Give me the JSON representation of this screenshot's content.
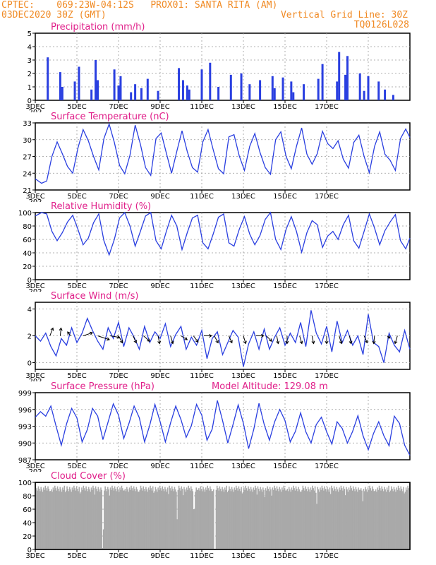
{
  "header": {
    "line1": "CPTEC:    069:23W-04:12S   PROX01: SANTA RITA (AM)",
    "line2_left": "03DEC2020 30Z (GMT)",
    "line2_right": "Vertical Grid Line: 30Z",
    "line3_right": "TQ0126L028"
  },
  "colors": {
    "header": "#f08a24",
    "title": "#e0208a",
    "series": "#2a3fe0",
    "cloud": "#a9a9a9"
  },
  "x_axis": {
    "ticks": [
      "3DEC",
      "5DEC",
      "7DEC",
      "9DEC",
      "11DEC",
      "13DEC",
      "15DEC",
      "17DEC"
    ],
    "year_fragment": "202"
  },
  "chart_data": [
    {
      "type": "bar",
      "title": "Precipitation (mm/h)",
      "ylim": [
        0,
        5
      ],
      "yticks": [
        "0",
        "1",
        "2",
        "3",
        "4",
        "5"
      ],
      "grid": true,
      "x_days": [
        0.6,
        1.2,
        1.3,
        1.9,
        2.1,
        2.7,
        2.9,
        3.0,
        3.8,
        4.0,
        4.1,
        4.6,
        4.8,
        5.1,
        5.4,
        5.9,
        6.9,
        7.1,
        7.3,
        7.4,
        8.0,
        8.4,
        8.8,
        9.4,
        9.9,
        10.3,
        10.8,
        11.4,
        11.5,
        11.9,
        12.3,
        12.4,
        12.9,
        13.6,
        13.8,
        14.5,
        14.6,
        14.9,
        15.0,
        15.6,
        15.8,
        16.0,
        16.5,
        16.8,
        17.2
      ],
      "values": [
        3.2,
        2.1,
        1.0,
        1.4,
        2.5,
        0.8,
        3.0,
        1.5,
        2.3,
        1.1,
        1.8,
        0.6,
        1.2,
        0.9,
        1.6,
        0.7,
        2.4,
        1.5,
        1.1,
        0.8,
        2.3,
        2.8,
        1.0,
        1.9,
        2.0,
        1.2,
        1.5,
        1.8,
        0.9,
        1.7,
        1.4,
        0.6,
        1.2,
        1.6,
        2.7,
        1.4,
        3.6,
        1.9,
        3.3,
        2.0,
        0.7,
        1.8,
        1.4,
        0.8,
        0.4
      ]
    },
    {
      "type": "line",
      "title": "Surface Temperature (nC)",
      "ylim": [
        21,
        33
      ],
      "yticks": [
        "21",
        "24",
        "27",
        "30",
        "33"
      ],
      "grid": true,
      "x_days": [
        0.0,
        0.3,
        0.55,
        0.8,
        1.05,
        1.3,
        1.55,
        1.8,
        2.05,
        2.3,
        2.55,
        2.8,
        3.05,
        3.3,
        3.55,
        3.8,
        4.05,
        4.3,
        4.55,
        4.8,
        5.05,
        5.3,
        5.55,
        5.8,
        6.05,
        6.3,
        6.55,
        6.8,
        7.05,
        7.3,
        7.55,
        7.8,
        8.05,
        8.3,
        8.55,
        8.8,
        9.05,
        9.3,
        9.55,
        9.8,
        10.05,
        10.3,
        10.55,
        10.8,
        11.05,
        11.3,
        11.55,
        11.8,
        12.05,
        12.3,
        12.55,
        12.8,
        13.05,
        13.3,
        13.55,
        13.8,
        14.05,
        14.3,
        14.55,
        14.8,
        15.05,
        15.3,
        15.55,
        15.8,
        16.05,
        16.3,
        16.55,
        16.8,
        17.05,
        17.3,
        17.55,
        17.8,
        18.0
      ],
      "values": [
        23.0,
        22.2,
        22.6,
        27.0,
        29.6,
        27.5,
        25.2,
        24.0,
        28.5,
        31.8,
        29.8,
        27.0,
        24.6,
        30.2,
        32.8,
        29.5,
        25.4,
        23.9,
        27.2,
        32.6,
        29.2,
        25.0,
        23.6,
        30.2,
        31.2,
        27.6,
        24.0,
        27.9,
        31.6,
        27.9,
        25.0,
        24.2,
        29.6,
        31.8,
        28.2,
        24.8,
        23.9,
        30.5,
        30.9,
        27.1,
        24.5,
        28.8,
        31.1,
        27.7,
        25.0,
        23.8,
        30.0,
        31.4,
        27.0,
        24.8,
        28.8,
        32.1,
        27.4,
        25.6,
        27.5,
        31.5,
        29.3,
        28.4,
        29.8,
        26.5,
        24.9,
        29.5,
        30.8,
        27.0,
        24.1,
        28.8,
        31.4,
        27.4,
        26.3,
        24.5,
        30.2,
        31.9,
        30.4
      ]
    },
    {
      "type": "line",
      "title": "Relative Humidity (%)",
      "ylim": [
        0,
        100
      ],
      "yticks": [
        "0",
        "20",
        "40",
        "60",
        "80",
        "100"
      ],
      "grid": true,
      "x_days": [
        0.0,
        0.3,
        0.55,
        0.8,
        1.05,
        1.3,
        1.55,
        1.8,
        2.05,
        2.3,
        2.55,
        2.8,
        3.05,
        3.3,
        3.55,
        3.8,
        4.05,
        4.3,
        4.55,
        4.8,
        5.05,
        5.3,
        5.55,
        5.8,
        6.05,
        6.3,
        6.55,
        6.8,
        7.05,
        7.3,
        7.55,
        7.8,
        8.05,
        8.3,
        8.55,
        8.8,
        9.05,
        9.3,
        9.55,
        9.8,
        10.05,
        10.3,
        10.55,
        10.8,
        11.05,
        11.3,
        11.55,
        11.8,
        12.05,
        12.3,
        12.55,
        12.8,
        13.05,
        13.3,
        13.55,
        13.8,
        14.05,
        14.3,
        14.55,
        14.8,
        15.05,
        15.3,
        15.55,
        15.8,
        16.05,
        16.3,
        16.55,
        16.8,
        17.05,
        17.3,
        17.55,
        17.8,
        18.0
      ],
      "values": [
        95.0,
        100.0,
        98.0,
        72.0,
        58.0,
        70.0,
        86.0,
        96.0,
        75.0,
        52.0,
        62.0,
        85.0,
        98.0,
        58.0,
        37.0,
        60.0,
        92.0,
        100.0,
        80.0,
        50.0,
        72.0,
        95.0,
        100.0,
        58.0,
        46.0,
        72.0,
        96.0,
        80.0,
        45.0,
        70.0,
        92.0,
        96.0,
        55.0,
        46.0,
        68.0,
        93.0,
        98.0,
        55.0,
        50.0,
        75.0,
        94.0,
        68.0,
        52.0,
        66.0,
        90.0,
        100.0,
        60.0,
        45.0,
        75.0,
        94.0,
        72.0,
        41.0,
        70.0,
        88.0,
        82.0,
        48.0,
        65.0,
        72.0,
        60.0,
        82.0,
        96.0,
        58.0,
        47.0,
        72.0,
        98.0,
        77.0,
        52.0,
        73.0,
        86.0,
        97.0,
        58.0,
        46.0,
        62.0
      ]
    },
    {
      "type": "line",
      "title": "Surface Wind (m/s)",
      "ylim": [
        -0.5,
        4.5
      ],
      "yticks": [
        "0",
        "2",
        "4"
      ],
      "grid": true,
      "x_days": [
        0.0,
        0.25,
        0.5,
        0.75,
        1.0,
        1.25,
        1.5,
        1.75,
        2.0,
        2.25,
        2.5,
        2.75,
        3.0,
        3.25,
        3.5,
        3.75,
        4.0,
        4.25,
        4.5,
        4.75,
        5.0,
        5.25,
        5.5,
        5.75,
        6.0,
        6.25,
        6.5,
        6.75,
        7.0,
        7.25,
        7.5,
        7.75,
        8.0,
        8.25,
        8.5,
        8.75,
        9.0,
        9.25,
        9.5,
        9.75,
        10.0,
        10.25,
        10.5,
        10.75,
        11.0,
        11.25,
        11.5,
        11.75,
        12.0,
        12.25,
        12.5,
        12.75,
        13.0,
        13.25,
        13.5,
        13.75,
        14.0,
        14.25,
        14.5,
        14.75,
        15.0,
        15.25,
        15.5,
        15.75,
        16.0,
        16.25,
        16.5,
        16.75,
        17.0,
        17.25,
        17.5,
        17.75,
        18.0
      ],
      "values": [
        2.0,
        1.6,
        2.2,
        1.2,
        0.5,
        1.8,
        1.3,
        2.6,
        1.5,
        2.2,
        3.3,
        2.4,
        1.6,
        1.0,
        2.6,
        1.8,
        3.0,
        1.2,
        2.6,
        1.9,
        1.0,
        2.7,
        1.5,
        2.3,
        1.8,
        2.9,
        1.2,
        2.1,
        2.7,
        1.0,
        1.9,
        1.3,
        2.4,
        0.3,
        1.8,
        2.3,
        0.6,
        1.5,
        2.4,
        1.9,
        -0.3,
        1.4,
        2.3,
        1.0,
        2.5,
        1.0,
        1.9,
        2.6,
        1.3,
        2.2,
        1.5,
        3.0,
        1.2,
        3.9,
        2.2,
        1.4,
        2.7,
        0.8,
        3.1,
        1.5,
        2.4,
        1.3,
        2.0,
        0.6,
        3.6,
        1.5,
        1.2,
        0.0,
        2.2,
        1.3,
        0.8,
        2.4,
        1.0
      ],
      "wind_vectors": [
        {
          "x": 0.7,
          "dx": 0.4,
          "dy": -1
        },
        {
          "x": 1.2,
          "dx": 0.1,
          "dy": -1
        },
        {
          "x": 1.7,
          "dx": -0.4,
          "dy": -0.5
        },
        {
          "x": 2.3,
          "dx": 1.2,
          "dy": -0.4
        },
        {
          "x": 3.0,
          "dx": 1.5,
          "dy": 0.5
        },
        {
          "x": 3.6,
          "dx": 1.2,
          "dy": 0.2
        },
        {
          "x": 4.0,
          "dx": 0.5,
          "dy": 0.9
        },
        {
          "x": 4.7,
          "dx": 0.4,
          "dy": 0.9
        },
        {
          "x": 5.2,
          "dx": 0.8,
          "dy": 0.7
        },
        {
          "x": 5.9,
          "dx": 0.2,
          "dy": 1
        },
        {
          "x": 6.5,
          "dx": 0.3,
          "dy": 1
        },
        {
          "x": 7.0,
          "dx": 0.8,
          "dy": 0.5
        },
        {
          "x": 7.6,
          "dx": 0.6,
          "dy": 0.8
        },
        {
          "x": 8.1,
          "dx": 1,
          "dy": 0
        },
        {
          "x": 8.6,
          "dx": 0.5,
          "dy": 0.9
        },
        {
          "x": 9.3,
          "dx": 0.4,
          "dy": 0.9
        },
        {
          "x": 10.0,
          "dx": 0.3,
          "dy": 1
        },
        {
          "x": 10.6,
          "dx": 1,
          "dy": 0
        },
        {
          "x": 11.1,
          "dx": 0.7,
          "dy": 0.7
        },
        {
          "x": 11.6,
          "dx": 0.2,
          "dy": 1
        },
        {
          "x": 12.1,
          "dx": 0,
          "dy": 1
        },
        {
          "x": 12.7,
          "dx": 0.3,
          "dy": 1
        },
        {
          "x": 13.3,
          "dx": 0.2,
          "dy": 1
        },
        {
          "x": 14.0,
          "dx": 0,
          "dy": 1
        },
        {
          "x": 14.6,
          "dx": 0.3,
          "dy": 1
        },
        {
          "x": 15.1,
          "dx": 0.2,
          "dy": 1
        },
        {
          "x": 15.8,
          "dx": 0.4,
          "dy": 0.9
        },
        {
          "x": 16.3,
          "dx": -0.1,
          "dy": 1
        },
        {
          "x": 16.9,
          "dx": 0.4,
          "dy": 0.3
        },
        {
          "x": 17.4,
          "dx": -0.3,
          "dy": 1
        }
      ]
    },
    {
      "type": "line",
      "title": "Surface Pressure (hPa)",
      "annotation": "Model Altitude: 129.08 m",
      "ylim": [
        987,
        999
      ],
      "yticks": [
        "987",
        "990",
        "993",
        "996",
        "999"
      ],
      "grid": true,
      "x_days": [
        0.0,
        0.25,
        0.5,
        0.75,
        1.0,
        1.25,
        1.5,
        1.75,
        2.0,
        2.25,
        2.5,
        2.75,
        3.0,
        3.25,
        3.5,
        3.75,
        4.0,
        4.25,
        4.5,
        4.75,
        5.0,
        5.25,
        5.5,
        5.75,
        6.0,
        6.25,
        6.5,
        6.75,
        7.0,
        7.25,
        7.5,
        7.75,
        8.0,
        8.25,
        8.5,
        8.75,
        9.0,
        9.25,
        9.5,
        9.75,
        10.0,
        10.25,
        10.5,
        10.75,
        11.0,
        11.25,
        11.5,
        11.75,
        12.0,
        12.25,
        12.5,
        12.75,
        13.0,
        13.25,
        13.5,
        13.75,
        14.0,
        14.25,
        14.5,
        14.75,
        15.0,
        15.25,
        15.5,
        15.75,
        16.0,
        16.25,
        16.5,
        16.75,
        17.0,
        17.25,
        17.5,
        17.75,
        18.0
      ],
      "values": [
        994.6,
        995.6,
        994.8,
        996.6,
        993.0,
        989.6,
        993.4,
        996.2,
        994.5,
        990.2,
        992.4,
        996.2,
        994.8,
        990.6,
        993.8,
        997.0,
        995.0,
        990.8,
        993.5,
        996.6,
        994.5,
        990.2,
        993.2,
        996.9,
        993.8,
        990.2,
        993.6,
        996.6,
        994.2,
        991.0,
        993.1,
        996.9,
        995.0,
        990.5,
        992.5,
        997.6,
        994.0,
        990.0,
        993.3,
        996.8,
        993.5,
        989.0,
        992.5,
        997.1,
        993.3,
        990.5,
        993.8,
        996.0,
        994.0,
        990.2,
        992.1,
        995.4,
        992.0,
        990.0,
        993.3,
        994.6,
        992.0,
        989.8,
        993.8,
        992.6,
        990.0,
        992.1,
        994.9,
        991.3,
        988.8,
        991.7,
        993.8,
        991.3,
        989.5,
        994.8,
        993.5,
        989.6,
        987.8
      ]
    },
    {
      "type": "bar",
      "title": "Cloud Cover (%)",
      "ylim": [
        0,
        100
      ],
      "yticks": [
        "0",
        "20",
        "40",
        "60",
        "80",
        "100"
      ],
      "grid": true,
      "x_range_days": [
        0,
        18
      ],
      "hourly_baseline": 95,
      "dropouts": [
        {
          "x": 3.2,
          "value": 2
        },
        {
          "x": 3.25,
          "value": 30
        },
        {
          "x": 6.8,
          "value": 45
        },
        {
          "x": 7.6,
          "value": 60
        },
        {
          "x": 8.6,
          "value": 0
        },
        {
          "x": 11.0,
          "value": 78
        },
        {
          "x": 13.5,
          "value": 68
        },
        {
          "x": 15.7,
          "value": 72
        }
      ]
    }
  ]
}
